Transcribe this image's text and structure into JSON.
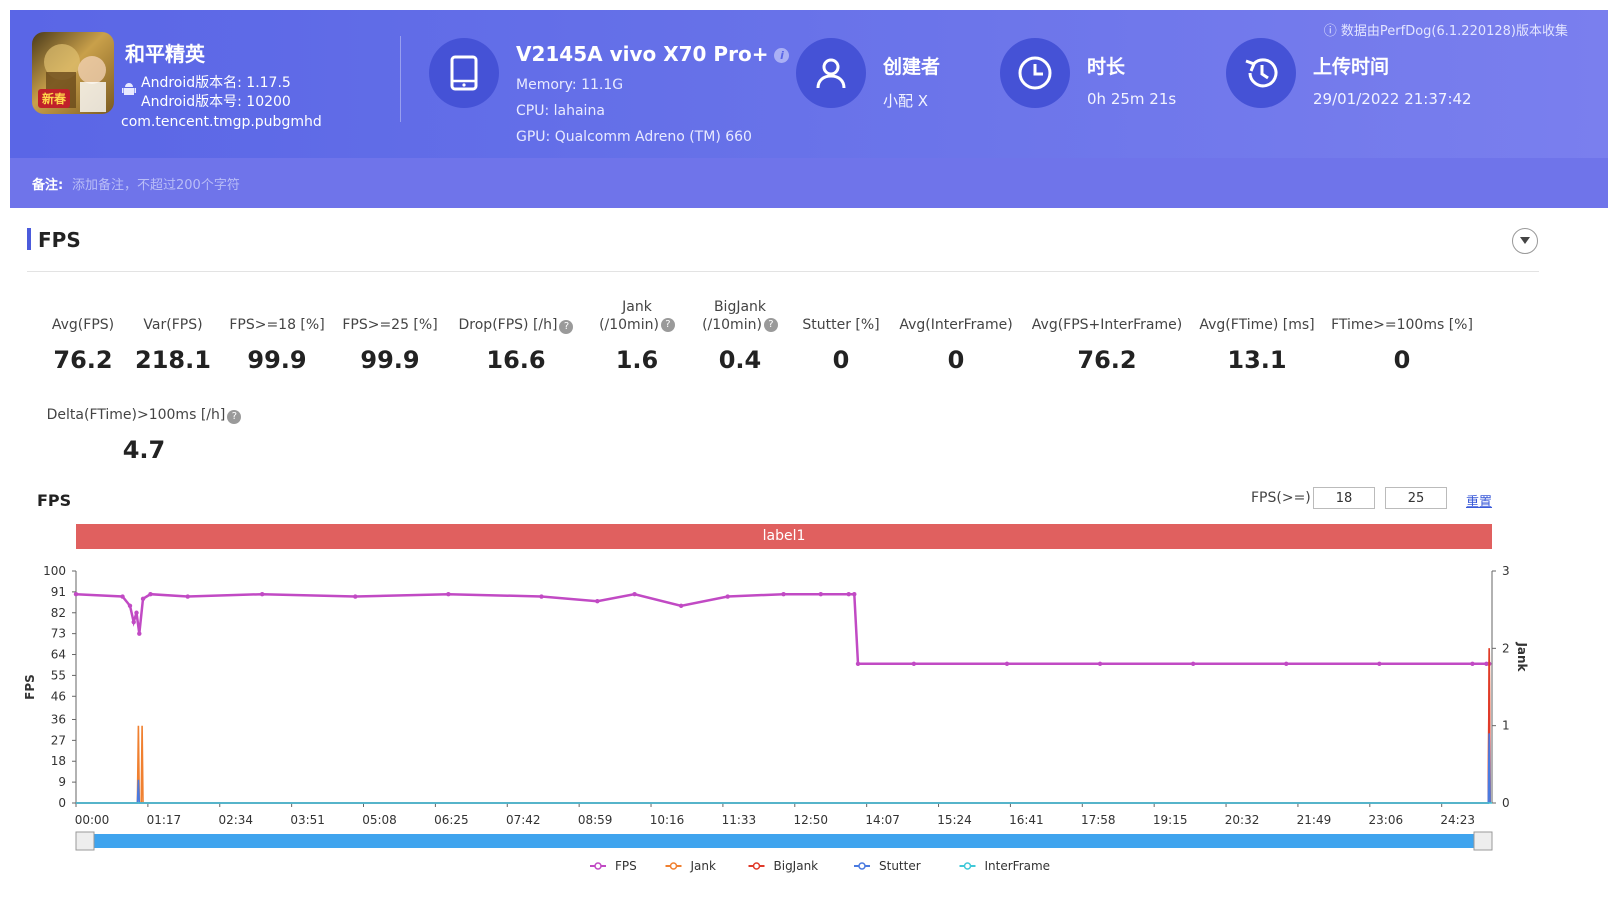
{
  "header": {
    "perf_note": "数据由PerfDog(6.1.220128)版本收集",
    "app": {
      "name": "和平精英",
      "badge": "新春",
      "version_name": "Android版本名: 1.17.5",
      "version_code": "Android版本号: 10200",
      "package": "com.tencent.tmgp.pubgmhd"
    },
    "device": {
      "name": "V2145A vivo X70 Pro+",
      "memory": "Memory: 11.1G",
      "cpu": "CPU: lahaina",
      "gpu": "GPU: Qualcomm Adreno (TM) 660"
    },
    "creator": {
      "title": "创建者",
      "value": "小配 X"
    },
    "duration": {
      "title": "时长",
      "value": "0h 25m 21s"
    },
    "upload": {
      "title": "上传时间",
      "value": "29/01/2022 21:37:42"
    },
    "note": {
      "label": "备注:",
      "placeholder": "添加备注，不超过200个字符"
    }
  },
  "fps_section": {
    "title": "FPS",
    "stats": [
      {
        "label": "Avg(FPS)",
        "value": "76.2"
      },
      {
        "label": "Var(FPS)",
        "value": "218.1"
      },
      {
        "label": "FPS>=18 [%]",
        "value": "99.9"
      },
      {
        "label": "FPS>=25 [%]",
        "value": "99.9"
      },
      {
        "label": "Drop(FPS) [/h]",
        "value": "16.6"
      },
      {
        "label": "Jank",
        "label2": "(/10min)",
        "value": "1.6"
      },
      {
        "label": "BigJank",
        "label2": "(/10min)",
        "value": "0.4"
      },
      {
        "label": "Stutter [%]",
        "value": "0"
      },
      {
        "label": "Avg(InterFrame)",
        "value": "0"
      },
      {
        "label": "Avg(FPS+InterFrame)",
        "value": "76.2"
      },
      {
        "label": "Avg(FTime) [ms]",
        "value": "13.1"
      },
      {
        "label": "FTime>=100ms [%]",
        "value": "0"
      },
      {
        "label": "Delta(FTime)>100ms [/h]",
        "value": "4.7"
      }
    ],
    "chart_title": "FPS",
    "threshold_label": "FPS(>=)",
    "threshold_1": "18",
    "threshold_2": "25",
    "reset_label": "重置",
    "strip_label": "label1"
  },
  "chart_data": {
    "type": "line",
    "ylabel": "FPS",
    "y2label": "Jank",
    "ylim": [
      0,
      100
    ],
    "y2lim": [
      0,
      3
    ],
    "y_ticks": [
      "0",
      "9",
      "18",
      "27",
      "36",
      "46",
      "55",
      "64",
      "73",
      "82",
      "91",
      "100"
    ],
    "y2_ticks": [
      "0",
      "1",
      "2",
      "3"
    ],
    "x_ticks": [
      "00:00",
      "01:17",
      "02:34",
      "03:51",
      "05:08",
      "06:25",
      "07:42",
      "08:59",
      "10:16",
      "11:33",
      "12:50",
      "14:07",
      "15:24",
      "16:41",
      "17:58",
      "19:15",
      "20:32",
      "21:49",
      "23:06",
      "24:23"
    ],
    "x_range_seconds": [
      0,
      1521
    ],
    "colors": {
      "FPS": "#c14ac4",
      "Jank": "#f08030",
      "BigJank": "#e03a2a",
      "Stutter": "#4a7ae0",
      "InterFrame": "#40c8d8"
    },
    "series": [
      {
        "name": "FPS",
        "x": [
          0,
          50,
          58,
          62,
          65,
          68,
          72,
          80,
          120,
          200,
          300,
          400,
          500,
          560,
          600,
          650,
          700,
          760,
          800,
          830,
          836,
          840,
          900,
          1000,
          1100,
          1200,
          1300,
          1400,
          1500,
          1515,
          1518
        ],
        "values": [
          90,
          89,
          85,
          78,
          82,
          73,
          88,
          90,
          89,
          90,
          89,
          90,
          89,
          87,
          90,
          85,
          89,
          90,
          90,
          90,
          90,
          60,
          60,
          60,
          60,
          60,
          60,
          60,
          60,
          60,
          60
        ]
      },
      {
        "name": "Jank",
        "x": [
          0,
          66,
          67,
          68,
          70,
          71,
          72,
          1517,
          1518,
          1519
        ],
        "values": [
          0,
          0,
          1,
          0,
          0,
          1,
          0,
          0,
          2,
          0
        ]
      },
      {
        "name": "BigJank",
        "x": [
          0,
          1517,
          1518,
          1519
        ],
        "values": [
          0,
          0,
          2,
          0
        ]
      },
      {
        "name": "Stutter",
        "x": [
          0,
          66,
          67,
          68,
          1517,
          1518,
          1519
        ],
        "values": [
          0,
          0,
          0.3,
          0,
          0,
          0.9,
          0
        ]
      },
      {
        "name": "InterFrame",
        "x": [
          0,
          1521
        ],
        "values": [
          0,
          0
        ]
      }
    ],
    "legend_position": "bottom"
  }
}
